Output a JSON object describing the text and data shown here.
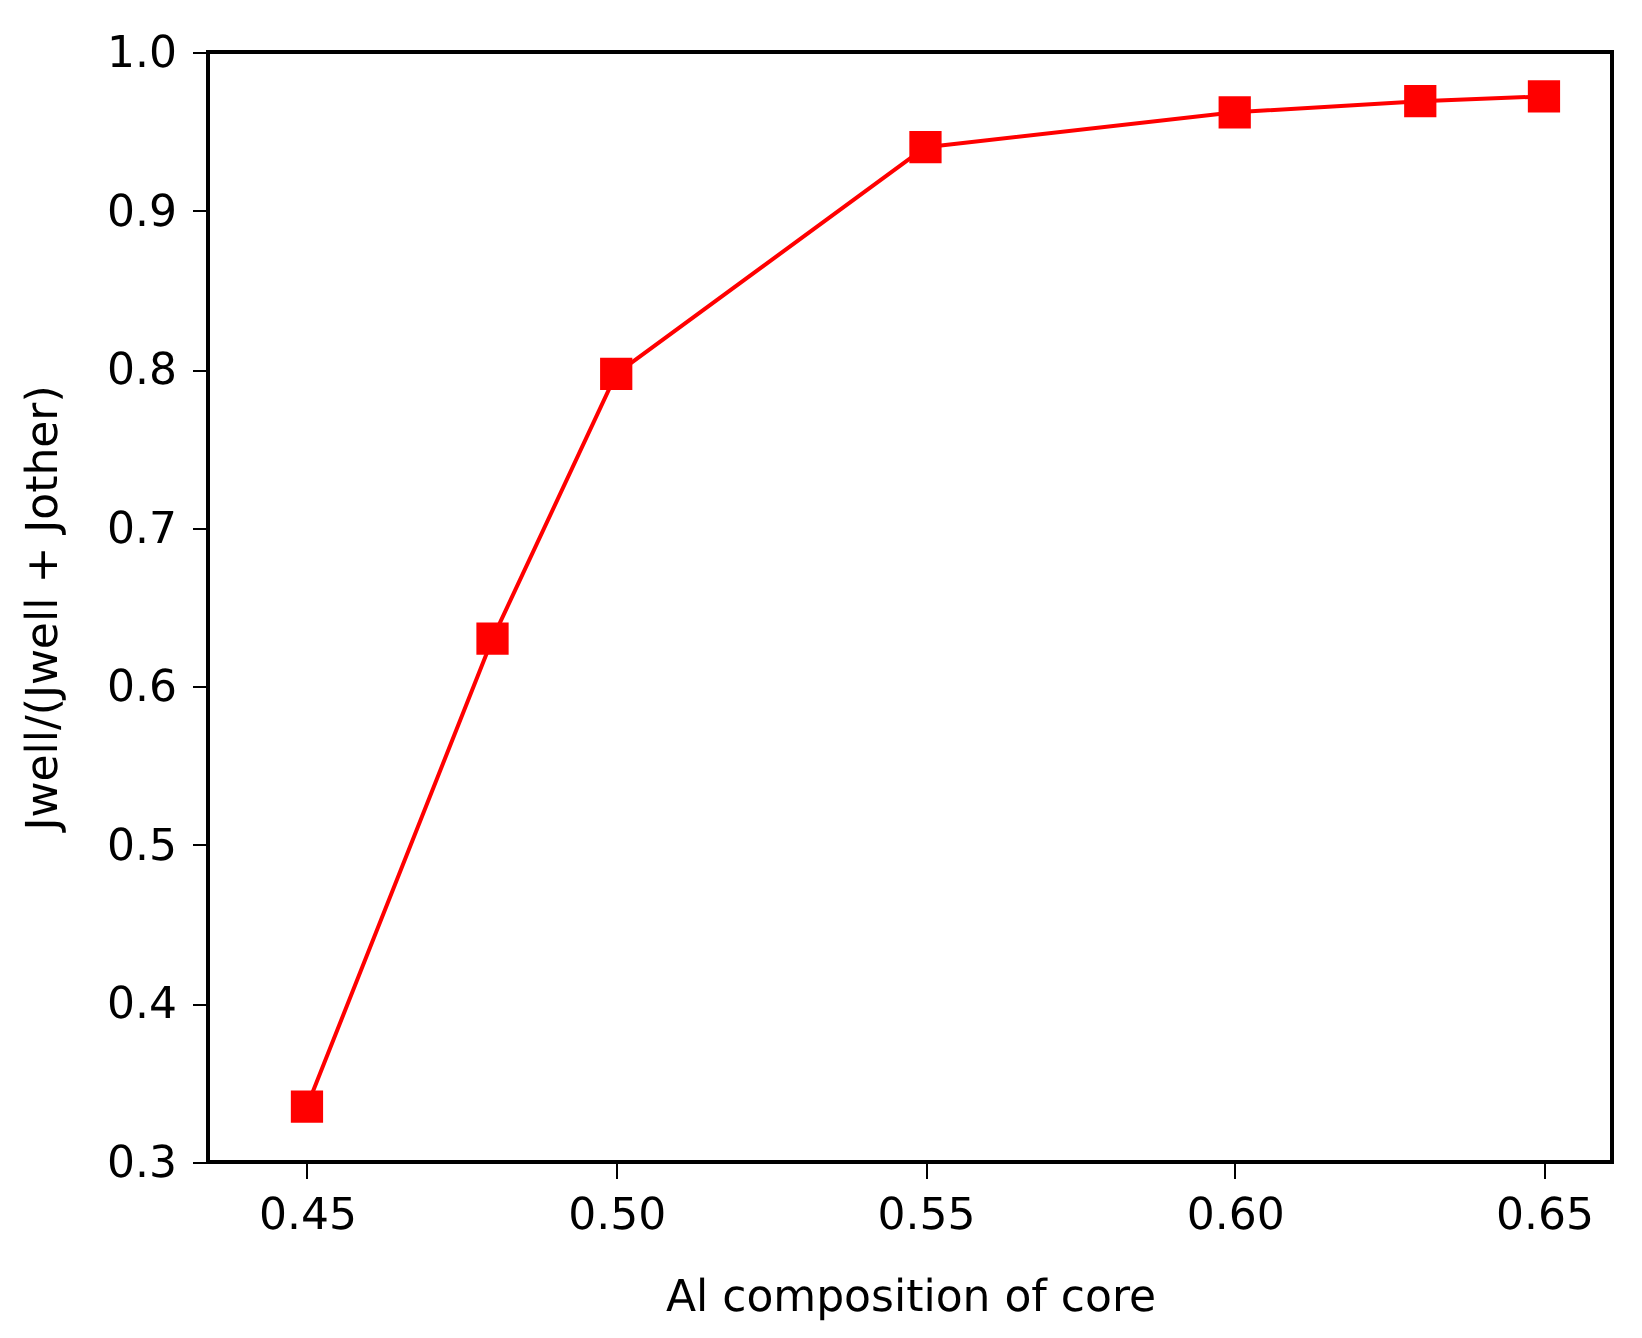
{
  "chart_data": {
    "type": "line",
    "xlabel": "Al composition of core",
    "ylabel": "Jwell/(Jwell + Jother)",
    "x": [
      0.45,
      0.48,
      0.5,
      0.55,
      0.6,
      0.63,
      0.65
    ],
    "series": [
      {
        "color": "#ff0000",
        "values": [
          0.335,
          0.63,
          0.797,
          0.94,
          0.962,
          0.969,
          0.972
        ]
      }
    ],
    "xlim": [
      0.434,
      0.661
    ],
    "ylim": [
      0.3,
      1.0
    ],
    "xticks": [
      0.45,
      {
        "value": 0.5,
        "label": "0.50"
      },
      0.55,
      {
        "value": 0.6,
        "label": "0.60"
      },
      0.65
    ],
    "yticks": [
      0.3,
      0.4,
      0.5,
      0.6,
      0.7,
      0.8,
      0.9,
      {
        "value": 1.0,
        "label": "1.0"
      }
    ],
    "marker": "square",
    "line_style": "solid",
    "grid": false
  }
}
